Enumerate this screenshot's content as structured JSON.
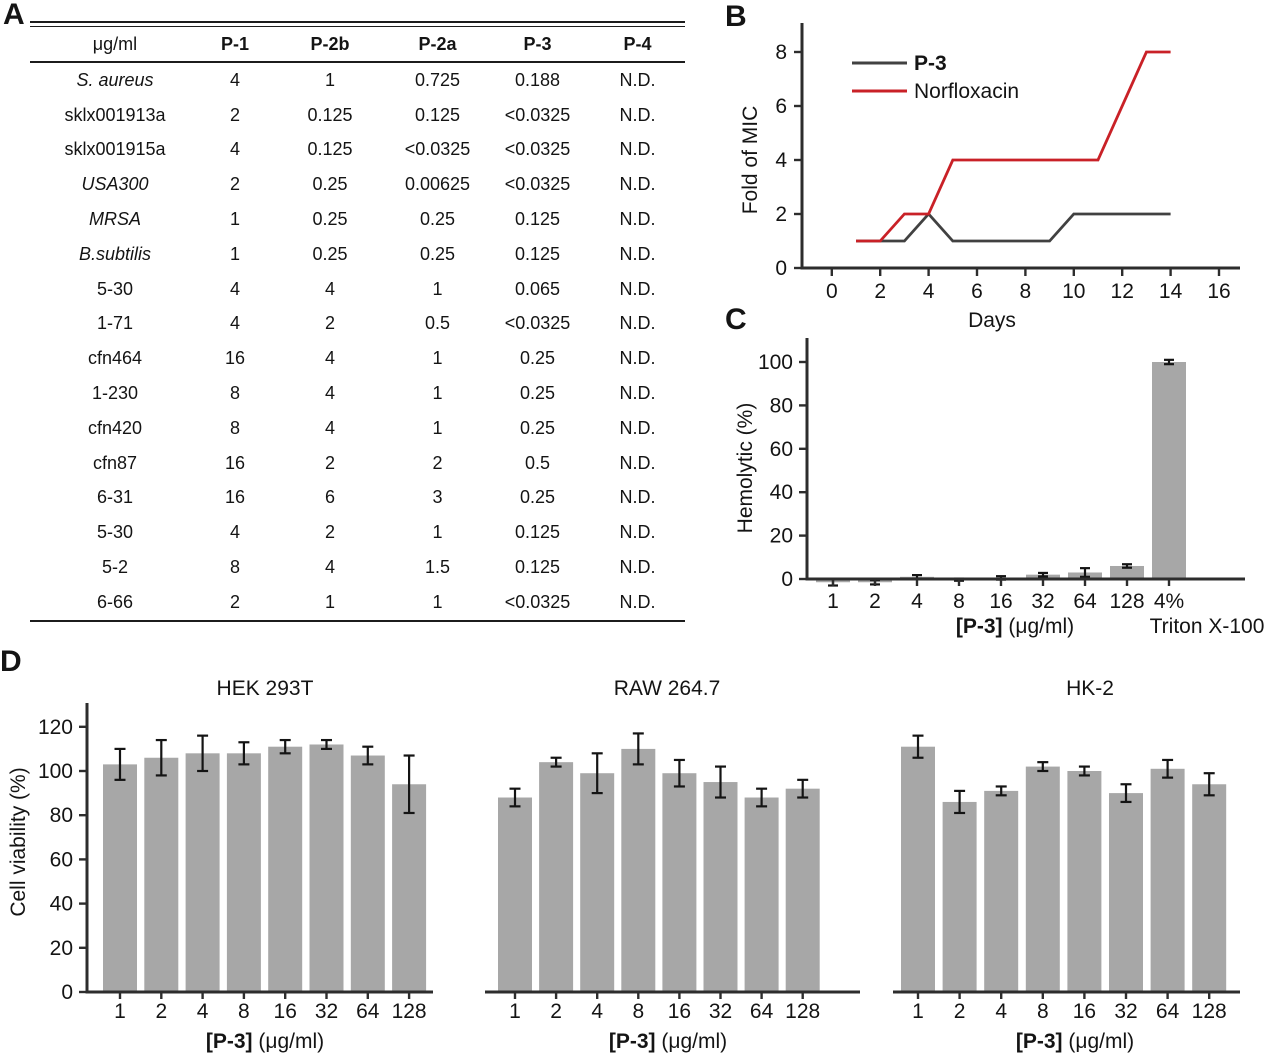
{
  "panels": {
    "a": "A",
    "b": "B",
    "c": "C",
    "d": "D"
  },
  "colors": {
    "bar": "#a7a7a7",
    "axis": "#2d2d2d",
    "error": "#141414",
    "text": "#141414",
    "p3_line": "#414141",
    "norfloxacin_line": "#c92127"
  },
  "table": {
    "unit_header": "μg/ml",
    "columns": [
      "P-1",
      "P-2b",
      "P-2a",
      "P-3",
      "P-4"
    ],
    "rows": [
      {
        "strain": "S. aureus",
        "italic": true,
        "values": [
          "4",
          "1",
          "0.725",
          "0.188",
          "N.D."
        ]
      },
      {
        "strain": "sklx001913a",
        "italic": false,
        "values": [
          "2",
          "0.125",
          "0.125",
          "<0.0325",
          "N.D."
        ]
      },
      {
        "strain": "sklx001915a",
        "italic": false,
        "values": [
          "4",
          "0.125",
          "<0.0325",
          "<0.0325",
          "N.D."
        ]
      },
      {
        "strain": "USA300",
        "italic": true,
        "values": [
          "2",
          "0.25",
          "0.00625",
          "<0.0325",
          "N.D."
        ]
      },
      {
        "strain": "MRSA",
        "italic": true,
        "values": [
          "1",
          "0.25",
          "0.25",
          "0.125",
          "N.D."
        ]
      },
      {
        "strain": "B.subtilis",
        "italic": true,
        "values": [
          "1",
          "0.25",
          "0.25",
          "0.125",
          "N.D."
        ]
      },
      {
        "strain": "5-30",
        "italic": false,
        "values": [
          "4",
          "4",
          "1",
          "0.065",
          "N.D."
        ]
      },
      {
        "strain": "1-71",
        "italic": false,
        "values": [
          "4",
          "2",
          "0.5",
          "<0.0325",
          "N.D."
        ]
      },
      {
        "strain": "cfn464",
        "italic": false,
        "values": [
          "16",
          "4",
          "1",
          "0.25",
          "N.D."
        ]
      },
      {
        "strain": "1-230",
        "italic": false,
        "values": [
          "8",
          "4",
          "1",
          "0.25",
          "N.D."
        ]
      },
      {
        "strain": "cfn420",
        "italic": false,
        "values": [
          "8",
          "4",
          "1",
          "0.25",
          "N.D."
        ]
      },
      {
        "strain": "cfn87",
        "italic": false,
        "values": [
          "16",
          "2",
          "2",
          "0.5",
          "N.D."
        ]
      },
      {
        "strain": "6-31",
        "italic": false,
        "values": [
          "16",
          "6",
          "3",
          "0.25",
          "N.D."
        ]
      },
      {
        "strain": "5-30",
        "italic": false,
        "values": [
          "4",
          "2",
          "1",
          "0.125",
          "N.D."
        ]
      },
      {
        "strain": "5-2",
        "italic": false,
        "values": [
          "8",
          "4",
          "1.5",
          "0.125",
          "N.D."
        ]
      },
      {
        "strain": "6-66",
        "italic": false,
        "values": [
          "2",
          "1",
          "1",
          "<0.0325",
          "N.D."
        ]
      }
    ]
  },
  "chart_data": [
    {
      "id": "resistance-line",
      "type": "line",
      "title": "",
      "xlabel": "Days",
      "ylabel": "Fold of MIC",
      "xlim": [
        0,
        16
      ],
      "ylim": [
        0,
        9
      ],
      "xticks": [
        0,
        2,
        4,
        6,
        8,
        10,
        12,
        14,
        16
      ],
      "yticks": [
        0,
        2,
        4,
        6,
        8
      ],
      "grid": false,
      "legend_position": "top-left",
      "x": [
        1,
        2,
        3,
        4,
        5,
        6,
        7,
        8,
        9,
        10,
        11,
        12,
        13,
        14
      ],
      "series": [
        {
          "name": "P-3",
          "values": [
            1,
            1,
            1,
            2,
            1,
            1,
            1,
            1,
            1,
            2,
            2,
            2,
            2,
            2
          ]
        },
        {
          "name": "Norfloxacin",
          "values": [
            1,
            1,
            2,
            2,
            4,
            4,
            4,
            4,
            4,
            4,
            4,
            6,
            8,
            8
          ]
        }
      ]
    },
    {
      "id": "hemolysis-bar",
      "type": "bar",
      "title": "",
      "ylabel": "Hemolytic (%)",
      "yticks": [
        0,
        20,
        40,
        60,
        80,
        100
      ],
      "ylim": [
        -5,
        110
      ],
      "categories": [
        "1",
        "2",
        "4",
        "8",
        "16",
        "32",
        "64",
        "128",
        "4%"
      ],
      "values": [
        -1.5,
        -1.5,
        1,
        -0.3,
        0.5,
        2,
        3,
        6,
        100
      ],
      "errors": [
        1.5,
        1,
        0.8,
        0.5,
        0.8,
        0.8,
        2,
        0.8,
        1
      ],
      "xlabel_bold": "[P-3]",
      "xlabel_rest": " (μg/ml)",
      "extra_xlabel": "Triton X-100"
    },
    {
      "id": "viability-hek293t",
      "type": "bar",
      "title": "HEK 293T",
      "ylabel": "Cell viability (%)",
      "yticks": [
        0,
        20,
        40,
        60,
        80,
        100,
        120
      ],
      "ylim": [
        0,
        130
      ],
      "categories": [
        "1",
        "2",
        "4",
        "8",
        "16",
        "32",
        "64",
        "128"
      ],
      "values": [
        103,
        106,
        108,
        108,
        111,
        112,
        107,
        94
      ],
      "errors": [
        7,
        8,
        8,
        5,
        3,
        2,
        4,
        13
      ],
      "xlabel_bold": "[P-3]",
      "xlabel_rest": " (μg/ml)"
    },
    {
      "id": "viability-raw2647",
      "type": "bar",
      "title": "RAW 264.7",
      "ylabel": "",
      "yticks": [],
      "ylim": [
        0,
        130
      ],
      "categories": [
        "1",
        "2",
        "4",
        "8",
        "16",
        "32",
        "64",
        "128"
      ],
      "values": [
        88,
        104,
        99,
        110,
        99,
        95,
        88,
        92
      ],
      "errors": [
        4,
        2,
        9,
        7,
        6,
        7,
        4,
        4
      ],
      "xlabel_bold": "[P-3]",
      "xlabel_rest": " (μg/ml)"
    },
    {
      "id": "viability-hk2",
      "type": "bar",
      "title": "HK-2",
      "ylabel": "",
      "yticks": [],
      "ylim": [
        0,
        130
      ],
      "categories": [
        "1",
        "2",
        "4",
        "8",
        "16",
        "32",
        "64",
        "128"
      ],
      "values": [
        111,
        86,
        91,
        102,
        100,
        90,
        101,
        94
      ],
      "errors": [
        5,
        5,
        2,
        2,
        2,
        4,
        4,
        5
      ],
      "xlabel_bold": "[P-3]",
      "xlabel_rest": " (μg/ml)"
    }
  ]
}
